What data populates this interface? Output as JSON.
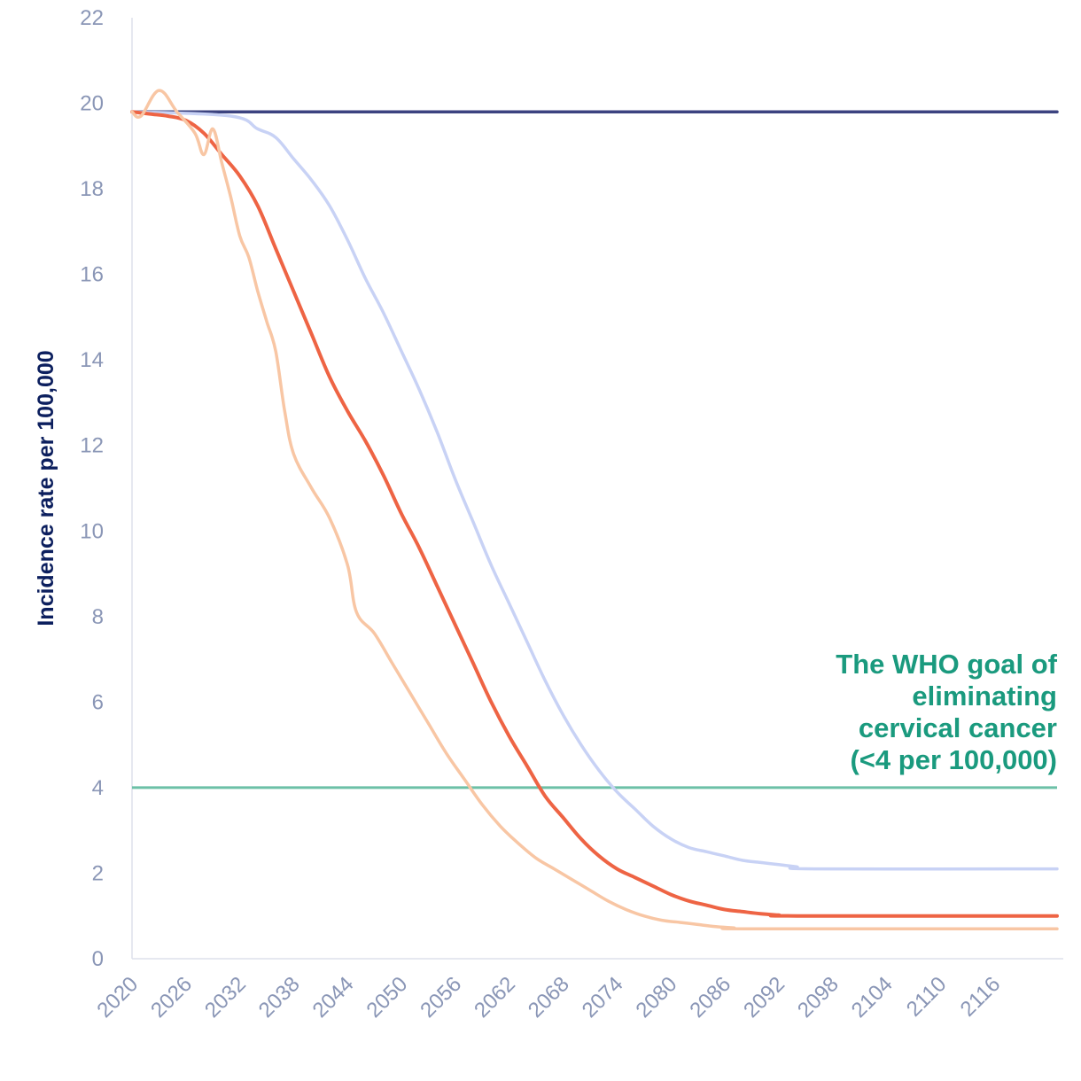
{
  "chart_data": {
    "type": "line",
    "title": "",
    "xlabel": "",
    "ylabel": "Incidence rate per 100,000",
    "x_range": [
      2020,
      2123
    ],
    "ylim": [
      0,
      22
    ],
    "y_ticks": [
      0,
      2,
      4,
      6,
      8,
      10,
      12,
      14,
      16,
      18,
      20,
      22
    ],
    "x_ticks": [
      2020,
      2026,
      2032,
      2038,
      2044,
      2050,
      2056,
      2062,
      2068,
      2074,
      2080,
      2086,
      2092,
      2098,
      2104,
      2110,
      2116
    ],
    "grid": false,
    "legend": "none",
    "annotation": {
      "lines": [
        "The WHO goal of",
        "eliminating",
        "cervical cancer",
        "(<4 per 100,000)"
      ],
      "color": "#1a9a7e"
    },
    "threshold": {
      "value": 4,
      "color": "#6cc0a7"
    },
    "series": [
      {
        "color": "#3c4380",
        "points": [
          [
            2020,
            19.8
          ],
          [
            2123,
            19.8
          ]
        ]
      },
      {
        "color": "#c8d2f5",
        "points": [
          [
            2020,
            19.8
          ],
          [
            2031,
            19.7
          ],
          [
            2034,
            19.4
          ],
          [
            2036,
            19.2
          ],
          [
            2038,
            18.7
          ],
          [
            2040,
            18.2
          ],
          [
            2042,
            17.6
          ],
          [
            2044,
            16.8
          ],
          [
            2046,
            15.9
          ],
          [
            2048,
            15.1
          ],
          [
            2050,
            14.2
          ],
          [
            2052,
            13.3
          ],
          [
            2054,
            12.3
          ],
          [
            2056,
            11.2
          ],
          [
            2058,
            10.2
          ],
          [
            2060,
            9.2
          ],
          [
            2062,
            8.3
          ],
          [
            2064,
            7.4
          ],
          [
            2066,
            6.5
          ],
          [
            2068,
            5.7
          ],
          [
            2070,
            5.0
          ],
          [
            2072,
            4.4
          ],
          [
            2074,
            3.9
          ],
          [
            2076,
            3.5
          ],
          [
            2078,
            3.1
          ],
          [
            2080,
            2.8
          ],
          [
            2082,
            2.6
          ],
          [
            2084,
            2.5
          ],
          [
            2086,
            2.4
          ],
          [
            2088,
            2.3
          ],
          [
            2090,
            2.25
          ],
          [
            2092,
            2.2
          ],
          [
            2094,
            2.15
          ],
          [
            2096,
            2.1
          ],
          [
            2123,
            2.1
          ]
        ]
      },
      {
        "color": "#ee6444",
        "points": [
          [
            2020,
            19.8
          ],
          [
            2022,
            19.75
          ],
          [
            2024,
            19.7
          ],
          [
            2026,
            19.6
          ],
          [
            2028,
            19.3
          ],
          [
            2030,
            18.8
          ],
          [
            2032,
            18.3
          ],
          [
            2034,
            17.6
          ],
          [
            2036,
            16.6
          ],
          [
            2038,
            15.6
          ],
          [
            2040,
            14.6
          ],
          [
            2042,
            13.6
          ],
          [
            2044,
            12.8
          ],
          [
            2046,
            12.1
          ],
          [
            2048,
            11.3
          ],
          [
            2050,
            10.4
          ],
          [
            2052,
            9.6
          ],
          [
            2054,
            8.7
          ],
          [
            2056,
            7.8
          ],
          [
            2058,
            6.9
          ],
          [
            2060,
            6.0
          ],
          [
            2062,
            5.2
          ],
          [
            2064,
            4.5
          ],
          [
            2066,
            3.8
          ],
          [
            2068,
            3.3
          ],
          [
            2070,
            2.8
          ],
          [
            2072,
            2.4
          ],
          [
            2074,
            2.1
          ],
          [
            2076,
            1.9
          ],
          [
            2078,
            1.7
          ],
          [
            2080,
            1.5
          ],
          [
            2082,
            1.35
          ],
          [
            2084,
            1.25
          ],
          [
            2086,
            1.15
          ],
          [
            2088,
            1.1
          ],
          [
            2090,
            1.05
          ],
          [
            2092,
            1.02
          ],
          [
            2094,
            1.0
          ],
          [
            2123,
            1.0
          ]
        ]
      },
      {
        "color": "#f8c6a4",
        "points": [
          [
            2020,
            19.8
          ],
          [
            2021,
            19.7
          ],
          [
            2023,
            20.3
          ],
          [
            2025,
            19.8
          ],
          [
            2027,
            19.3
          ],
          [
            2028,
            18.8
          ],
          [
            2029,
            19.4
          ],
          [
            2030,
            18.6
          ],
          [
            2031,
            17.8
          ],
          [
            2032,
            16.9
          ],
          [
            2033,
            16.4
          ],
          [
            2034,
            15.6
          ],
          [
            2035,
            14.9
          ],
          [
            2036,
            14.2
          ],
          [
            2037,
            12.8
          ],
          [
            2038,
            11.8
          ],
          [
            2040,
            11.0
          ],
          [
            2042,
            10.3
          ],
          [
            2044,
            9.2
          ],
          [
            2045,
            8.1
          ],
          [
            2047,
            7.6
          ],
          [
            2049,
            6.9
          ],
          [
            2051,
            6.2
          ],
          [
            2053,
            5.5
          ],
          [
            2055,
            4.8
          ],
          [
            2057,
            4.2
          ],
          [
            2059,
            3.6
          ],
          [
            2061,
            3.1
          ],
          [
            2063,
            2.7
          ],
          [
            2065,
            2.35
          ],
          [
            2067,
            2.1
          ],
          [
            2069,
            1.85
          ],
          [
            2071,
            1.6
          ],
          [
            2073,
            1.35
          ],
          [
            2075,
            1.15
          ],
          [
            2077,
            1.0
          ],
          [
            2079,
            0.9
          ],
          [
            2081,
            0.85
          ],
          [
            2083,
            0.8
          ],
          [
            2085,
            0.75
          ],
          [
            2087,
            0.72
          ],
          [
            2089,
            0.7
          ],
          [
            2123,
            0.7
          ]
        ]
      }
    ]
  }
}
